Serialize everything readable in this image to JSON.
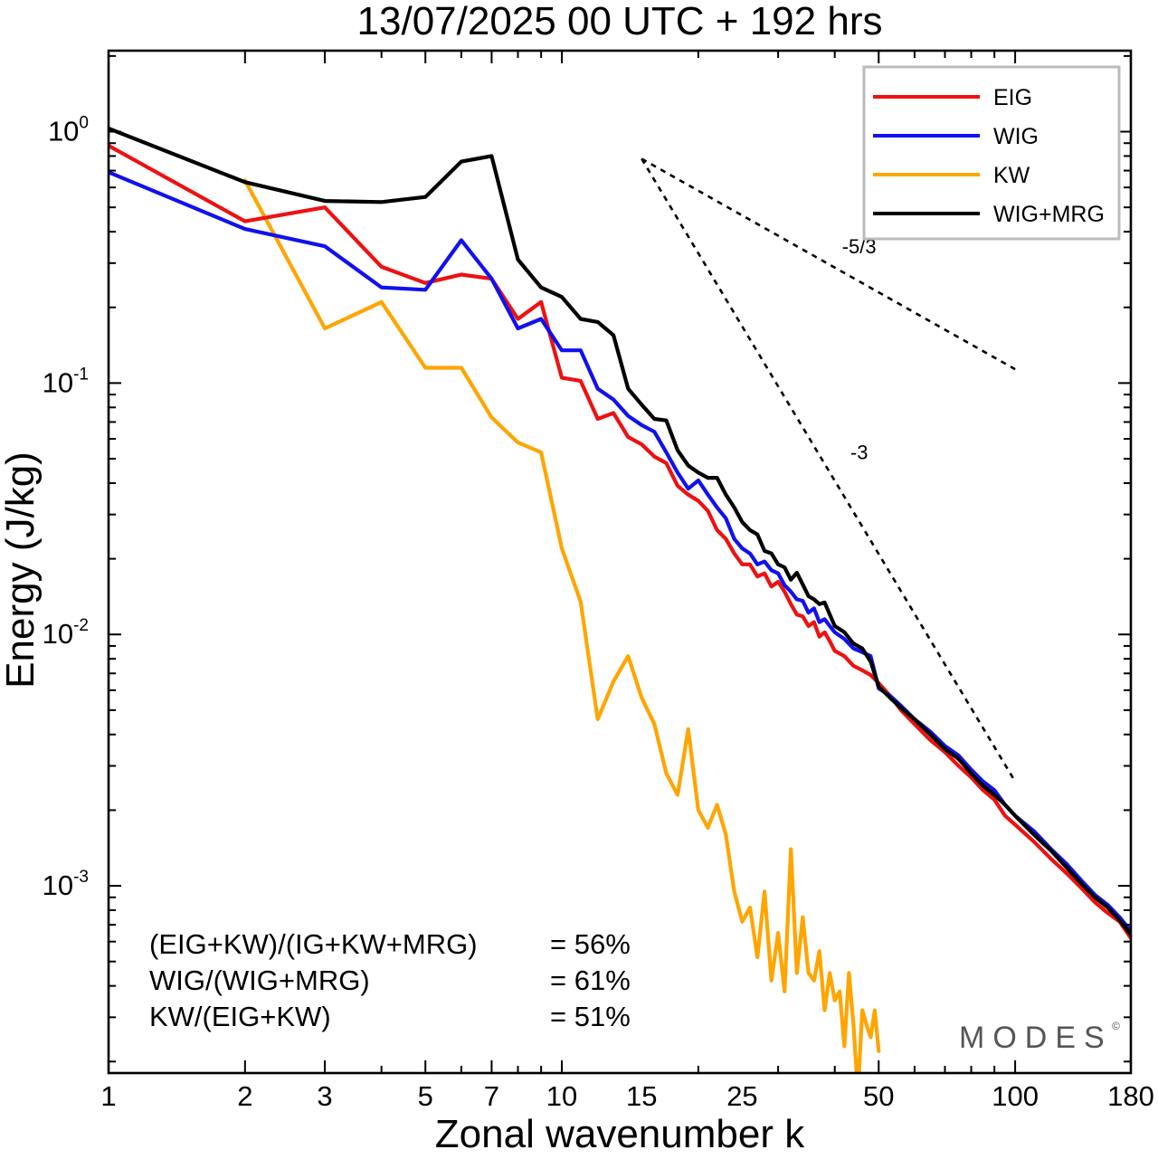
{
  "title": "13/07/2025  00 UTC  + 192 hrs",
  "watermark": "MODES",
  "ratios": [
    {
      "label": "(EIG+KW)/(IG+KW+MRG)",
      "value": "= 56%"
    },
    {
      "label": "WIG/(WIG+MRG)",
      "value": "= 61%"
    },
    {
      "label": "KW/(EIG+KW)",
      "value": "= 51%"
    }
  ],
  "chart_data": {
    "type": "line",
    "title": "13/07/2025  00 UTC  + 192 hrs",
    "xlabel": "Zonal wavenumber k",
    "ylabel": "Energy (J/kg)",
    "xscale": "log",
    "yscale": "log",
    "xlim": [
      1,
      180
    ],
    "ylim": [
      0.00018,
      2.1
    ],
    "xticks": [
      1,
      2,
      3,
      5,
      7,
      10,
      15,
      25,
      50,
      100,
      180
    ],
    "yticks": [
      {
        "value": 1,
        "base": "10",
        "exp": "0"
      },
      {
        "value": 0.1,
        "base": "10",
        "exp": "-1"
      },
      {
        "value": 0.01,
        "base": "10",
        "exp": "-2"
      },
      {
        "value": 0.001,
        "base": "10",
        "exp": "-3"
      }
    ],
    "grid": false,
    "legend_position": "top-right",
    "series": [
      {
        "name": "EIG",
        "color": "#ee1111",
        "x": [
          1,
          2,
          3,
          4,
          5,
          6,
          7,
          8,
          9,
          10,
          11,
          12,
          13,
          14,
          15,
          16,
          17,
          18,
          19,
          20,
          21,
          22,
          23,
          24,
          25,
          26,
          27,
          28,
          29,
          30,
          31,
          32,
          33,
          34,
          35,
          36,
          37,
          38,
          39,
          40,
          42,
          44,
          46,
          48,
          50,
          53,
          56,
          60,
          65,
          70,
          75,
          80,
          85,
          90,
          95,
          100,
          110,
          120,
          130,
          140,
          150,
          160,
          170,
          180
        ],
        "y": [
          0.88,
          0.44,
          0.5,
          0.29,
          0.25,
          0.27,
          0.26,
          0.18,
          0.21,
          0.105,
          0.102,
          0.072,
          0.076,
          0.061,
          0.057,
          0.051,
          0.048,
          0.039,
          0.036,
          0.034,
          0.031,
          0.026,
          0.024,
          0.021,
          0.019,
          0.019,
          0.017,
          0.0175,
          0.0155,
          0.0162,
          0.0148,
          0.0132,
          0.012,
          0.0118,
          0.0108,
          0.0112,
          0.0098,
          0.0102,
          0.0094,
          0.0086,
          0.0082,
          0.0075,
          0.0072,
          0.0069,
          0.0064,
          0.0057,
          0.005,
          0.0044,
          0.0038,
          0.0034,
          0.003,
          0.0027,
          0.0024,
          0.0022,
          0.0019,
          0.00175,
          0.0015,
          0.00128,
          0.00112,
          0.00098,
          0.00086,
          0.00078,
          0.00072,
          0.00062
        ]
      },
      {
        "name": "WIG",
        "color": "#1111ee",
        "x": [
          1,
          2,
          3,
          4,
          5,
          6,
          7,
          8,
          9,
          10,
          11,
          12,
          13,
          14,
          15,
          16,
          17,
          18,
          19,
          20,
          21,
          22,
          23,
          24,
          25,
          26,
          27,
          28,
          29,
          30,
          31,
          32,
          33,
          34,
          35,
          36,
          37,
          38,
          39,
          40,
          42,
          44,
          46,
          48,
          50,
          53,
          56,
          60,
          65,
          70,
          75,
          80,
          85,
          90,
          95,
          100,
          110,
          120,
          130,
          140,
          150,
          160,
          170,
          180
        ],
        "y": [
          0.69,
          0.41,
          0.35,
          0.24,
          0.235,
          0.37,
          0.26,
          0.165,
          0.18,
          0.135,
          0.135,
          0.095,
          0.086,
          0.074,
          0.068,
          0.064,
          0.053,
          0.044,
          0.038,
          0.041,
          0.036,
          0.032,
          0.029,
          0.024,
          0.022,
          0.021,
          0.019,
          0.0195,
          0.018,
          0.0175,
          0.0157,
          0.0148,
          0.0138,
          0.0136,
          0.0122,
          0.0127,
          0.0112,
          0.0115,
          0.0108,
          0.0102,
          0.0096,
          0.0088,
          0.0085,
          0.0082,
          0.0061,
          0.0057,
          0.0052,
          0.0046,
          0.0041,
          0.0036,
          0.0033,
          0.0029,
          0.0026,
          0.0024,
          0.0021,
          0.0019,
          0.00165,
          0.0014,
          0.00122,
          0.00105,
          0.00092,
          0.00084,
          0.00075,
          0.00066
        ]
      },
      {
        "name": "KW",
        "color": "#ffa500",
        "x": [
          2,
          3,
          4,
          5,
          6,
          7,
          8,
          9,
          10,
          11,
          12,
          13,
          14,
          15,
          16,
          17,
          18,
          19,
          20,
          21,
          22,
          23,
          24,
          25,
          26,
          27,
          28,
          29,
          30,
          31,
          32,
          33,
          34,
          35,
          36,
          37,
          38,
          39,
          40,
          41,
          42,
          43,
          44,
          45,
          46,
          47,
          48,
          49,
          50
        ],
        "y": [
          0.64,
          0.165,
          0.21,
          0.115,
          0.115,
          0.073,
          0.058,
          0.053,
          0.022,
          0.0135,
          0.0046,
          0.0065,
          0.0082,
          0.0056,
          0.0044,
          0.0028,
          0.0023,
          0.0042,
          0.002,
          0.0017,
          0.0021,
          0.0016,
          0.00095,
          0.00072,
          0.00082,
          0.00052,
          0.00095,
          0.00042,
          0.00065,
          0.00038,
          0.0014,
          0.00045,
          0.00075,
          0.00045,
          0.00042,
          0.00055,
          0.00032,
          0.00045,
          0.00035,
          0.00038,
          0.00023,
          0.00045,
          0.00028,
          0.00015,
          0.00032,
          0.00028,
          0.00025,
          0.00032,
          0.00022
        ]
      },
      {
        "name": "WIG+MRG",
        "color": "#000000",
        "x": [
          1,
          2,
          3,
          4,
          5,
          6,
          7,
          8,
          9,
          10,
          11,
          12,
          13,
          14,
          15,
          16,
          17,
          18,
          19,
          20,
          21,
          22,
          23,
          24,
          25,
          26,
          27,
          28,
          29,
          30,
          31,
          32,
          33,
          34,
          35,
          36,
          37,
          38,
          39,
          40,
          42,
          44,
          46,
          48,
          50,
          53,
          56,
          60,
          65,
          70,
          75,
          80,
          85,
          90,
          95,
          100,
          110,
          120,
          130,
          140,
          150,
          160,
          170,
          180
        ],
        "y": [
          1.03,
          0.63,
          0.53,
          0.525,
          0.55,
          0.76,
          0.8,
          0.31,
          0.24,
          0.22,
          0.18,
          0.175,
          0.155,
          0.095,
          0.082,
          0.072,
          0.071,
          0.054,
          0.047,
          0.044,
          0.042,
          0.042,
          0.036,
          0.032,
          0.028,
          0.026,
          0.025,
          0.0215,
          0.021,
          0.019,
          0.0185,
          0.0165,
          0.0176,
          0.0158,
          0.0142,
          0.0138,
          0.0132,
          0.0134,
          0.012,
          0.0108,
          0.0102,
          0.0092,
          0.0088,
          0.0078,
          0.0062,
          0.0056,
          0.0051,
          0.0046,
          0.004,
          0.0035,
          0.0032,
          0.0028,
          0.0025,
          0.0023,
          0.0021,
          0.0019,
          0.0016,
          0.00138,
          0.00118,
          0.00102,
          0.0009,
          0.00082,
          0.00073,
          0.00064
        ]
      }
    ],
    "annotations": [
      {
        "name": "slope-5/3",
        "label": "-5/3",
        "x": [
          15,
          100
        ],
        "y": [
          0.78,
          0.1135
        ],
        "style": "dashed"
      },
      {
        "name": "slope-3",
        "label": "-3",
        "x": [
          15,
          100
        ],
        "y": [
          0.78,
          0.0026
        ],
        "style": "dashed"
      }
    ]
  }
}
